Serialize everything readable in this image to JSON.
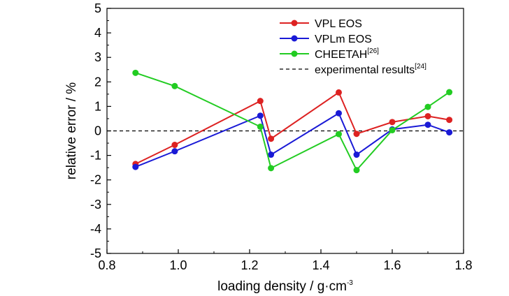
{
  "chart_data": {
    "type": "line",
    "xlabel": "loading density / g·cm",
    "xlabel_sup": "-3",
    "ylabel": "relative error / %",
    "xlim": [
      0.8,
      1.8
    ],
    "ylim": [
      -5,
      5
    ],
    "xticks": [
      0.8,
      1.0,
      1.2,
      1.4,
      1.6,
      1.8
    ],
    "xtick_labels": [
      "0.8",
      "1.0",
      "1.2",
      "1.4",
      "1.6",
      "1.8"
    ],
    "yticks": [
      -5,
      -4,
      -3,
      -2,
      -1,
      0,
      1,
      2,
      3,
      4,
      5
    ],
    "ytick_labels": [
      "-5",
      "-4",
      "-3",
      "-2",
      "-1",
      "0",
      "1",
      "2",
      "3",
      "4",
      "5"
    ],
    "grid": false,
    "legend_position": "top-right",
    "series": [
      {
        "name": "VPL EOS",
        "sup": "",
        "color": "#dd2222",
        "x": [
          0.88,
          0.99,
          1.23,
          1.26,
          1.45,
          1.5,
          1.6,
          1.7,
          1.76
        ],
        "y": [
          -1.35,
          -0.57,
          1.22,
          -0.32,
          1.57,
          -0.12,
          0.36,
          0.6,
          0.45
        ]
      },
      {
        "name": "VPLm EOS",
        "sup": "",
        "color": "#1a1ad6",
        "x": [
          0.88,
          0.99,
          1.23,
          1.26,
          1.45,
          1.5,
          1.6,
          1.7,
          1.76
        ],
        "y": [
          -1.47,
          -0.83,
          0.62,
          -0.97,
          0.72,
          -0.97,
          0.06,
          0.25,
          -0.06
        ]
      },
      {
        "name": "CHEETAH",
        "sup": "[26]",
        "color": "#22cc22",
        "x": [
          0.88,
          0.99,
          1.23,
          1.26,
          1.45,
          1.5,
          1.6,
          1.7,
          1.76
        ],
        "y": [
          2.37,
          1.83,
          0.17,
          -1.52,
          -0.13,
          -1.6,
          0.03,
          0.98,
          1.58
        ]
      }
    ],
    "reference_line": {
      "name": "experimental results",
      "sup": "[24]",
      "y": 0,
      "style": "dashed",
      "color": "#000000"
    }
  }
}
